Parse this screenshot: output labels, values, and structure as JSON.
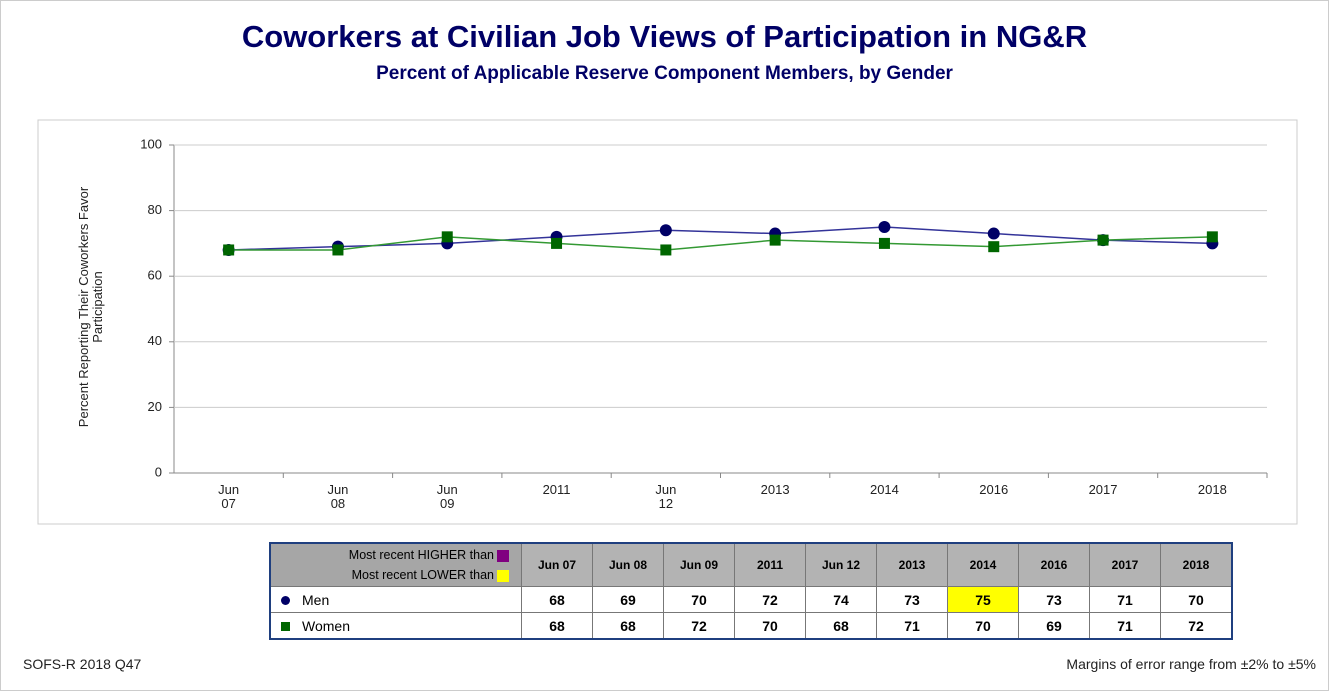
{
  "chart_data": {
    "type": "line",
    "title": "Coworkers at Civilian Job Views of Participation in NG&R",
    "subtitle": "Percent of Applicable Reserve Component Members, by Gender",
    "ylabel": "Percent Reporting Their Coworkers Favor Participation",
    "categories": [
      "Jun 07",
      "Jun 08",
      "Jun 09",
      "2011",
      "Jun 12",
      "2013",
      "2014",
      "2016",
      "2017",
      "2018"
    ],
    "series": [
      {
        "name": "Men",
        "color": "#000066",
        "line_color": "#333399",
        "marker": "circle",
        "values": [
          68,
          69,
          70,
          72,
          74,
          73,
          75,
          73,
          71,
          70
        ]
      },
      {
        "name": "Women",
        "color": "#006600",
        "line_color": "#339933",
        "marker": "square",
        "values": [
          68,
          68,
          72,
          70,
          68,
          71,
          70,
          69,
          71,
          72
        ]
      }
    ],
    "ylim": [
      0,
      100
    ],
    "yticks": [
      0,
      20,
      40,
      60,
      80,
      100
    ],
    "grid": true,
    "table": {
      "higher_label": "Most recent HIGHER than",
      "higher_color": "#800080",
      "lower_label": "Most recent LOWER than",
      "lower_color": "#ffff00",
      "lower_cells": [
        [
          0,
          6
        ]
      ]
    },
    "source": "SOFS-R 2018 Q47",
    "note": "Margins of error range from ±2% to ±5%"
  }
}
